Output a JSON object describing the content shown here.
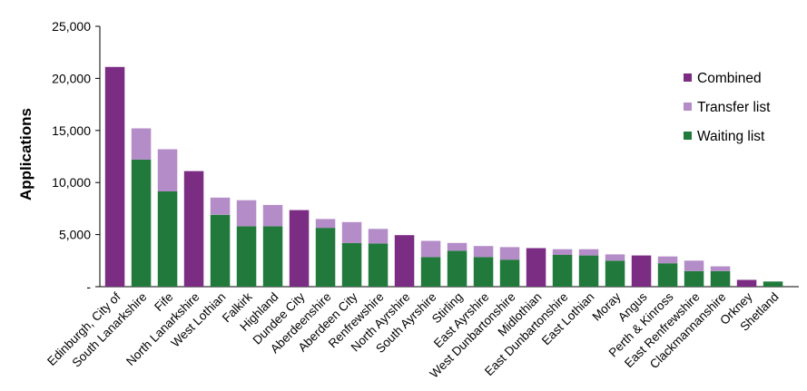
{
  "chart_data": {
    "type": "bar",
    "stacked": true,
    "ylabel": "Applications",
    "ylim": [
      0,
      25000
    ],
    "yticks": [
      "-",
      "5,000",
      "10,000",
      "15,000",
      "20,000",
      "25,000"
    ],
    "legend_position": "right",
    "categories": [
      "Edinburgh, City of",
      "South Lanarkshire",
      "Fife",
      "North Lanarkshire",
      "West Lothian",
      "Falkirk",
      "Highland",
      "Dundee City",
      "Aberdeenshire",
      "Aberdeen City",
      "Renfrewshire",
      "North Ayrshire",
      "South Ayrshire",
      "Stirling",
      "East Ayrshire",
      "West Dunbartonshire",
      "Midlothian",
      "East Dunbartonshire",
      "East Lothian",
      "Moray",
      "Angus",
      "Perth & Kinross",
      "East Renfrewshire",
      "Clackmannanshire",
      "Orkney",
      "Shetland"
    ],
    "series": [
      {
        "name": "Waiting list",
        "color": "#217a3c",
        "values": [
          0,
          12200,
          9150,
          0,
          6900,
          5800,
          5800,
          0,
          5650,
          4200,
          4150,
          0,
          2850,
          3450,
          2850,
          2600,
          0,
          3050,
          3000,
          2500,
          0,
          2250,
          1500,
          1500,
          0,
          500
        ]
      },
      {
        "name": "Transfer list",
        "color": "#b48cc8",
        "values": [
          0,
          3000,
          4050,
          0,
          1650,
          2500,
          2050,
          0,
          850,
          2000,
          1400,
          0,
          1550,
          750,
          1050,
          1200,
          0,
          550,
          600,
          600,
          0,
          650,
          1000,
          450,
          0,
          0
        ]
      },
      {
        "name": "Combined",
        "color": "#7b2c83",
        "values": [
          21100,
          0,
          0,
          11100,
          0,
          0,
          0,
          7350,
          0,
          0,
          0,
          4950,
          0,
          0,
          0,
          0,
          3700,
          0,
          0,
          0,
          3000,
          0,
          0,
          0,
          650,
          0
        ]
      }
    ],
    "legend": [
      "Combined",
      "Transfer list",
      "Waiting list"
    ]
  }
}
